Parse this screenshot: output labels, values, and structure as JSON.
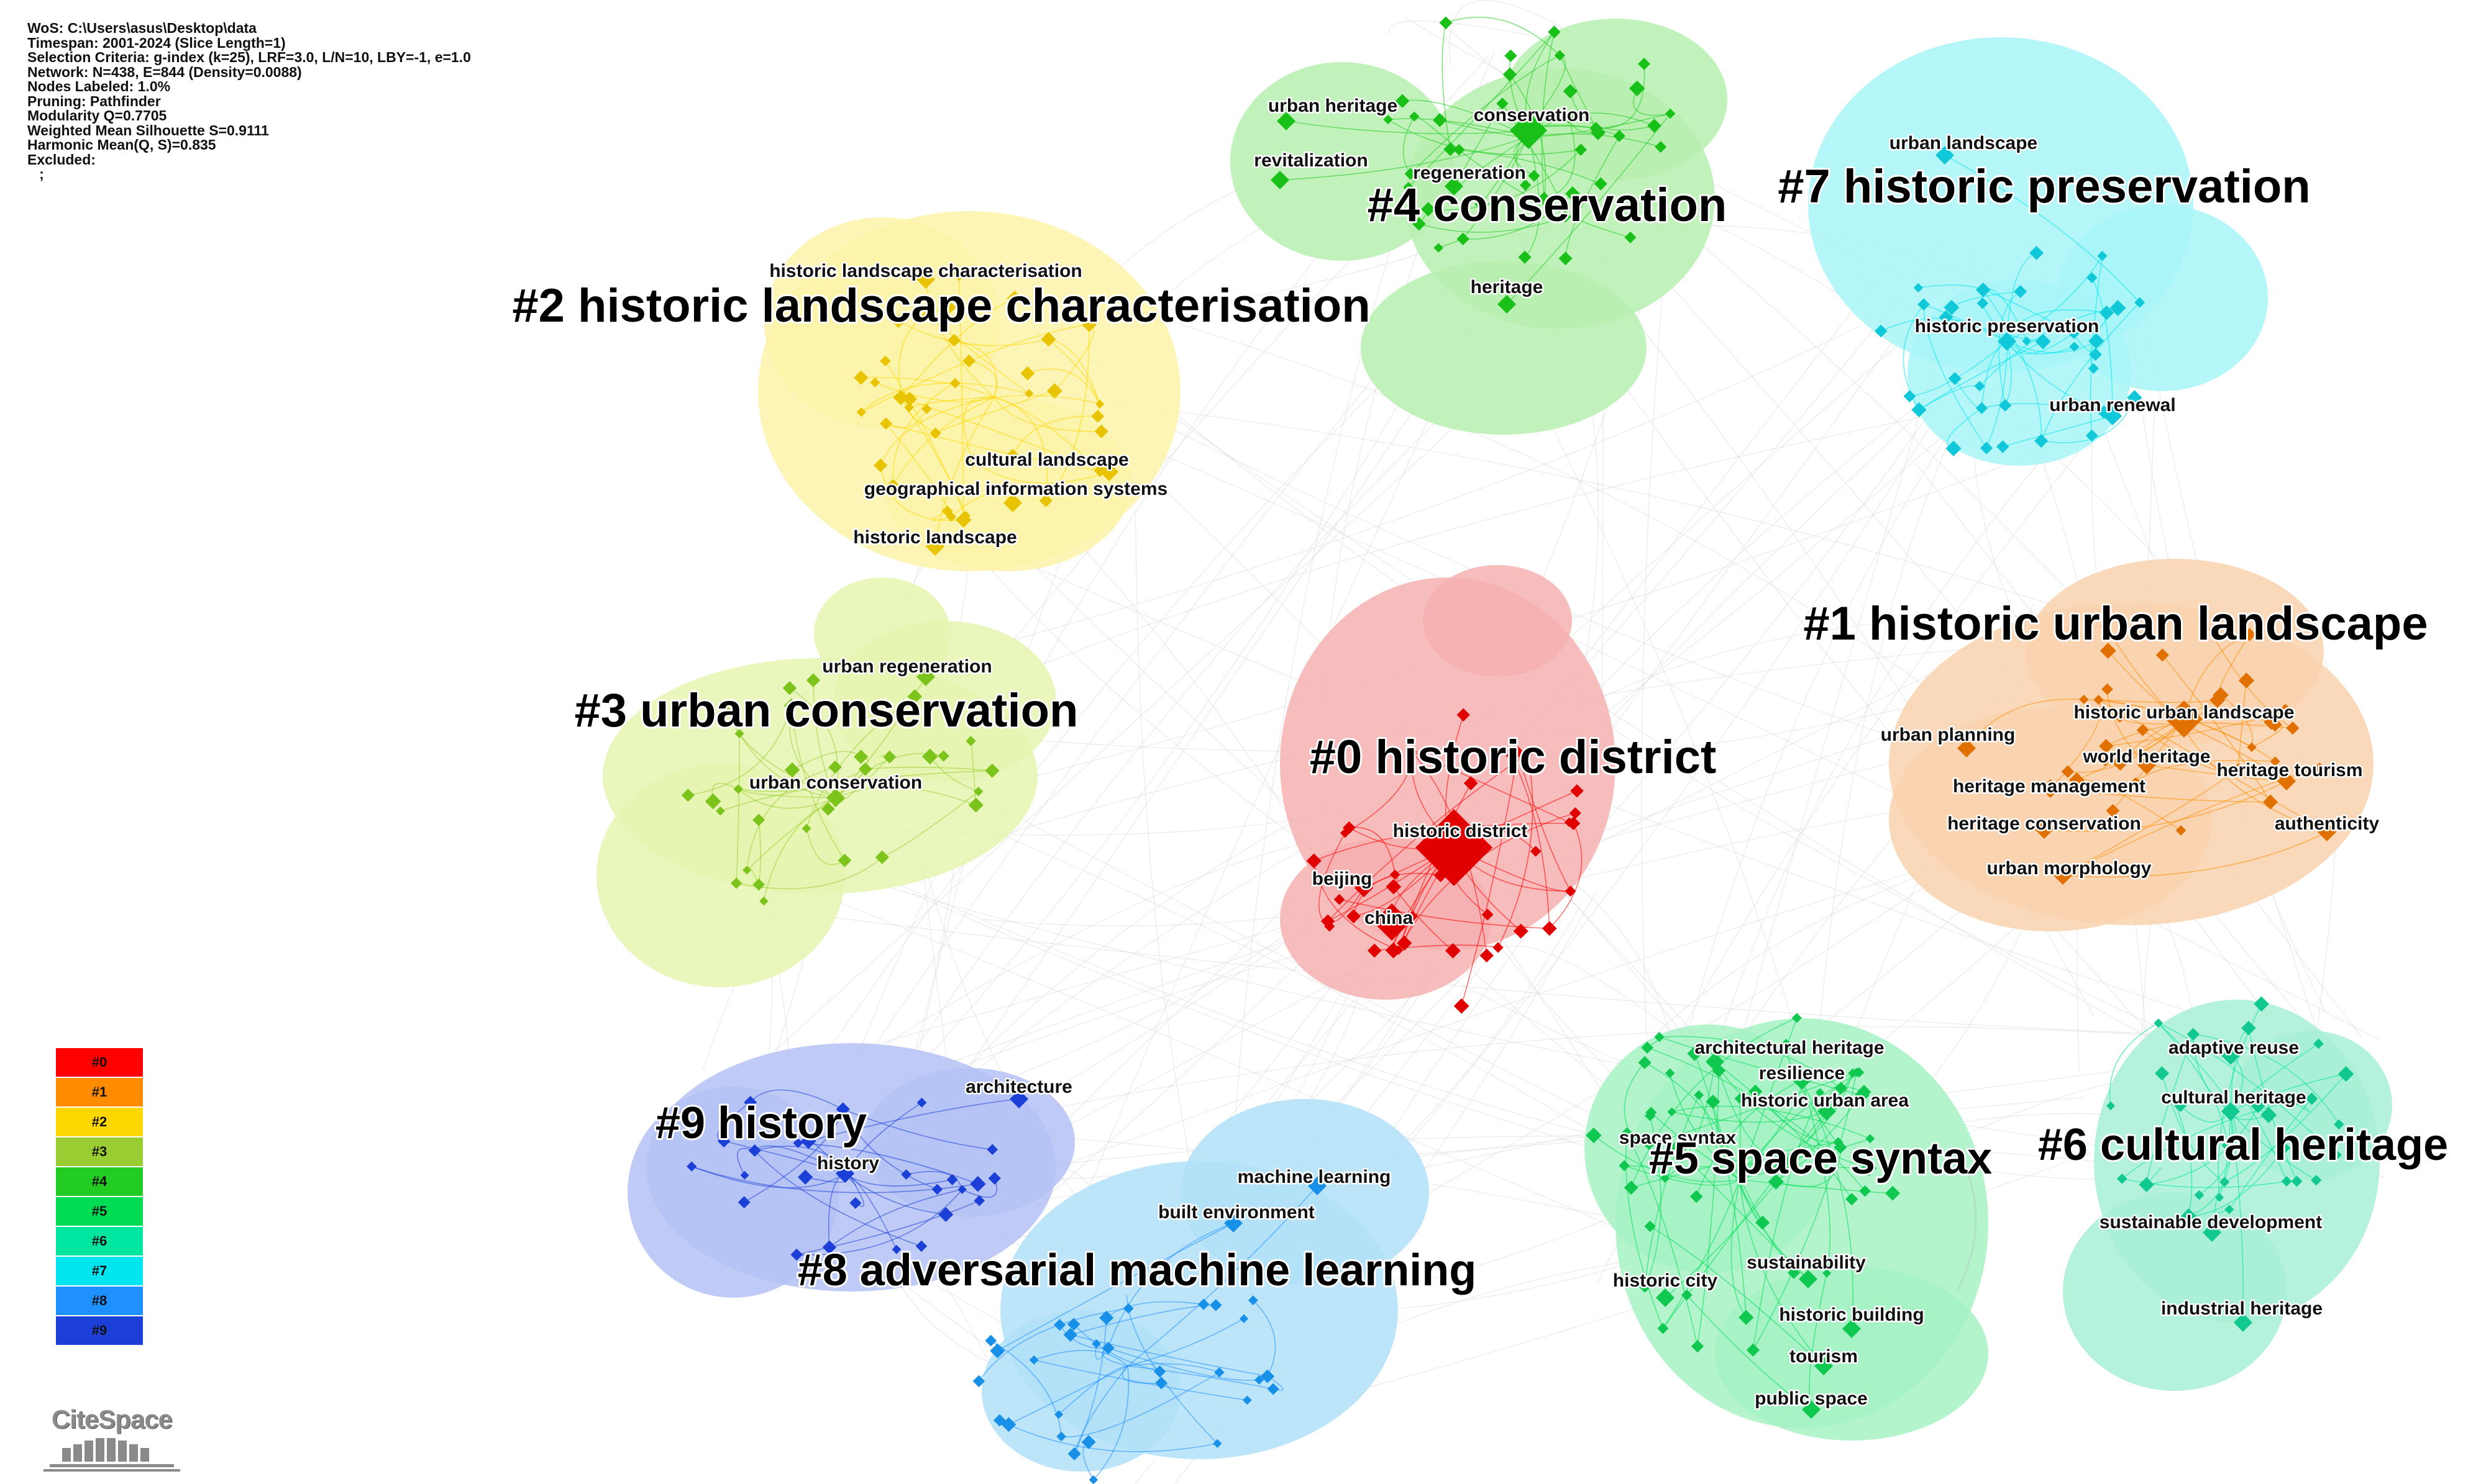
{
  "info": [
    "WoS: C:\\Users\\asus\\Desktop\\data",
    "Timespan: 2001-2024 (Slice Length=1)",
    "Selection Criteria: g-index (k=25), LRF=3.0, L/N=10, LBY=-1, e=1.0",
    "Network: N=438, E=844 (Density=0.0088)",
    "Nodes Labeled: 1.0%",
    "Pruning: Pathfinder",
    "Modularity Q=0.7705",
    "Weighted Mean Silhouette S=0.9111",
    "Harmonic Mean(Q, S)=0.835",
    "Excluded:",
    "   ;"
  ],
  "legend": [
    {
      "label": "#0",
      "color": "#ff0000"
    },
    {
      "label": "#1",
      "color": "#ff8c00"
    },
    {
      "label": "#2",
      "color": "#ffd700"
    },
    {
      "label": "#3",
      "color": "#9acd32"
    },
    {
      "label": "#4",
      "color": "#22cc22"
    },
    {
      "label": "#5",
      "color": "#00dd55"
    },
    {
      "label": "#6",
      "color": "#00e5a0"
    },
    {
      "label": "#7",
      "color": "#00e5ee"
    },
    {
      "label": "#8",
      "color": "#1e90ff"
    },
    {
      "label": "#9",
      "color": "#1c3fd8"
    }
  ],
  "logo": "CiteSpace",
  "clusters": [
    {
      "id": "c0",
      "label": "#0 historic district",
      "color": "#ff0000",
      "blob": "#f6b0b0",
      "node": "#e00000",
      "keywords": [
        {
          "text": "historic district",
          "big": true
        },
        {
          "text": "beijing"
        },
        {
          "text": "china",
          "big": true
        }
      ]
    },
    {
      "id": "c1",
      "label": "#1 historic urban landscape",
      "color": "#ff8c00",
      "blob": "#f9d2ae",
      "node": "#e07000",
      "keywords": [
        {
          "text": "historic urban landscape",
          "big": true
        },
        {
          "text": "urban planning"
        },
        {
          "text": "world heritage"
        },
        {
          "text": "heritage tourism"
        },
        {
          "text": "heritage management"
        },
        {
          "text": "heritage conservation"
        },
        {
          "text": "authenticity"
        },
        {
          "text": "urban morphology"
        }
      ]
    },
    {
      "id": "c2",
      "label": "#2 historic landscape characterisation",
      "color": "#ffd700",
      "blob": "#fbf3a9",
      "node": "#e8c400",
      "keywords": [
        {
          "text": "historic landscape characterisation"
        },
        {
          "text": "cultural landscape"
        },
        {
          "text": "geographical information systems"
        },
        {
          "text": "historic landscape"
        }
      ]
    },
    {
      "id": "c3",
      "label": "#3 urban conservation",
      "color": "#9acd32",
      "blob": "#e5f5b0",
      "node": "#7cc41c",
      "keywords": [
        {
          "text": "urban regeneration"
        },
        {
          "text": "urban conservation"
        }
      ]
    },
    {
      "id": "c4",
      "label": "#4 conservation",
      "color": "#22cc22",
      "blob": "#b7f0b0",
      "node": "#18c018",
      "keywords": [
        {
          "text": "urban heritage"
        },
        {
          "text": "conservation",
          "big": true
        },
        {
          "text": "revitalization"
        },
        {
          "text": "regeneration"
        },
        {
          "text": "heritage"
        }
      ]
    },
    {
      "id": "c5",
      "label": "#5 space syntax",
      "color": "#00dd55",
      "blob": "#a6f2c4",
      "node": "#10c850",
      "keywords": [
        {
          "text": "architectural heritage"
        },
        {
          "text": "resilience"
        },
        {
          "text": "historic urban area"
        },
        {
          "text": "space syntax"
        },
        {
          "text": "sustainability"
        },
        {
          "text": "historic city"
        },
        {
          "text": "historic building"
        },
        {
          "text": "tourism"
        },
        {
          "text": "public space"
        }
      ]
    },
    {
      "id": "c6",
      "label": "#6 cultural heritage",
      "color": "#00e5a0",
      "blob": "#a8f0d5",
      "node": "#10c890",
      "keywords": [
        {
          "text": "adaptive reuse"
        },
        {
          "text": "cultural heritage"
        },
        {
          "text": "sustainable development"
        },
        {
          "text": "industrial heritage"
        }
      ]
    },
    {
      "id": "c7",
      "label": "#7 historic preservation",
      "color": "#00e5ee",
      "blob": "#a8f5f7",
      "node": "#10c8d8",
      "keywords": [
        {
          "text": "urban landscape"
        },
        {
          "text": "historic preservation"
        },
        {
          "text": "urban renewal"
        }
      ]
    },
    {
      "id": "c8",
      "label": "#8 adversarial machine learning",
      "color": "#1e90ff",
      "blob": "#b2e0f8",
      "node": "#1890e8",
      "keywords": [
        {
          "text": "machine learning"
        },
        {
          "text": "built environment"
        }
      ]
    },
    {
      "id": "c9",
      "label": "#9 history",
      "color": "#1c3fd8",
      "blob": "#b4c2f4",
      "node": "#1c3fd8",
      "keywords": [
        {
          "text": "architecture"
        },
        {
          "text": "history"
        }
      ]
    }
  ]
}
